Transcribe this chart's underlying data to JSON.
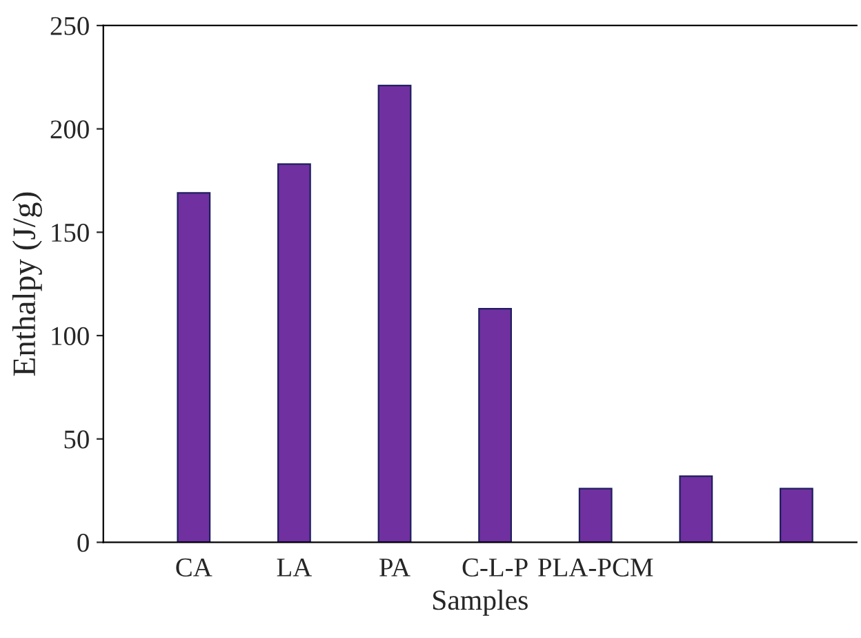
{
  "chart_data": {
    "type": "bar",
    "xlabel": "Samples",
    "ylabel": "Enthalpy (J/g)",
    "categories": [
      "CA",
      "LA",
      "PA",
      "C-L-P",
      "PLA-PCM",
      null,
      null
    ],
    "values": [
      169,
      183,
      221,
      113,
      26,
      32,
      26
    ],
    "color": "#7030a0",
    "ylim": [
      0,
      250
    ],
    "yticks": [
      0,
      50,
      100,
      150,
      200,
      250
    ],
    "grid": false,
    "legend": false
  }
}
